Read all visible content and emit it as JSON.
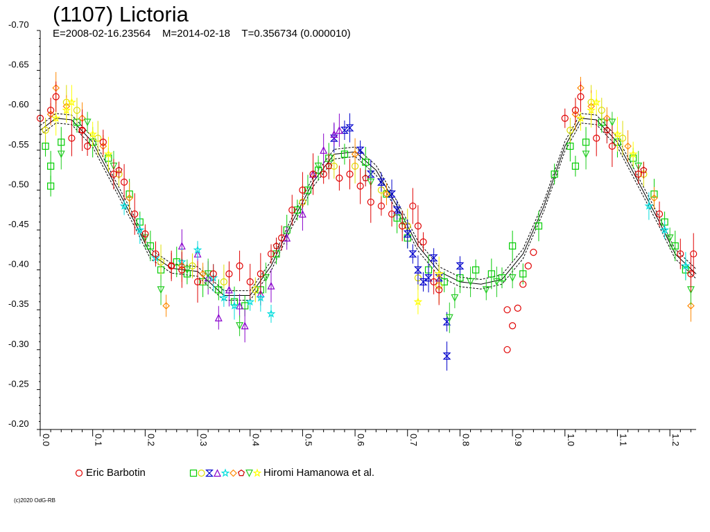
{
  "chart_data": {
    "type": "scatter",
    "title": "(1107) Lictoria",
    "subtitle": "E=2008-02-16.23564    M=2014-02-18    T=0.356734 (0.000010)",
    "xlabel": "",
    "ylabel": "",
    "xlim": [
      0.0,
      1.25
    ],
    "ylim": [
      -0.7,
      -0.2
    ],
    "x_ticks": [
      "0.0",
      "0.1",
      "0.2",
      "0.3",
      "0.4",
      "0.5",
      "0.6",
      "0.7",
      "0.8",
      "0.9",
      "1.0",
      "1.1",
      "1.2"
    ],
    "y_ticks": [
      "-0.70",
      "-0.65",
      "-0.60",
      "-0.55",
      "-0.50",
      "-0.45",
      "-0.40",
      "-0.35",
      "-0.30",
      "-0.25",
      "-0.20"
    ],
    "grid": false,
    "legend_position": "bottom",
    "fit_curve": [
      [
        0.0,
        -0.575
      ],
      [
        0.03,
        -0.59
      ],
      [
        0.06,
        -0.588
      ],
      [
        0.1,
        -0.56
      ],
      [
        0.14,
        -0.51
      ],
      [
        0.18,
        -0.46
      ],
      [
        0.21,
        -0.42
      ],
      [
        0.25,
        -0.402
      ],
      [
        0.3,
        -0.398
      ],
      [
        0.35,
        -0.368
      ],
      [
        0.4,
        -0.368
      ],
      [
        0.44,
        -0.405
      ],
      [
        0.48,
        -0.46
      ],
      [
        0.52,
        -0.51
      ],
      [
        0.56,
        -0.545
      ],
      [
        0.6,
        -0.548
      ],
      [
        0.64,
        -0.525
      ],
      [
        0.68,
        -0.48
      ],
      [
        0.72,
        -0.43
      ],
      [
        0.76,
        -0.398
      ],
      [
        0.8,
        -0.385
      ],
      [
        0.84,
        -0.382
      ],
      [
        0.88,
        -0.388
      ],
      [
        0.92,
        -0.42
      ],
      [
        0.96,
        -0.48
      ],
      [
        1.0,
        -0.555
      ],
      [
        1.03,
        -0.59
      ],
      [
        1.06,
        -0.588
      ],
      [
        1.1,
        -0.56
      ],
      [
        1.14,
        -0.51
      ],
      [
        1.18,
        -0.46
      ],
      [
        1.21,
        -0.42
      ],
      [
        1.25,
        -0.395
      ]
    ],
    "fit_offset": 0.006,
    "series": [
      {
        "name": "Eric Barbotin",
        "marker": "circle",
        "color": "#e00000",
        "points": [
          [
            0.0,
            -0.59
          ],
          [
            0.02,
            -0.6
          ],
          [
            0.03,
            -0.617
          ],
          [
            0.06,
            -0.565
          ],
          [
            0.08,
            -0.575
          ],
          [
            0.09,
            -0.555
          ],
          [
            0.12,
            -0.56
          ],
          [
            0.14,
            -0.52
          ],
          [
            0.16,
            -0.51
          ],
          [
            0.18,
            -0.47
          ],
          [
            0.2,
            -0.445
          ],
          [
            0.22,
            -0.42
          ],
          [
            0.25,
            -0.405
          ],
          [
            0.27,
            -0.4
          ],
          [
            0.3,
            -0.385
          ],
          [
            0.33,
            -0.395
          ],
          [
            0.36,
            -0.395
          ],
          [
            0.38,
            -0.405
          ],
          [
            0.4,
            -0.385
          ],
          [
            0.42,
            -0.395
          ],
          [
            0.44,
            -0.42
          ],
          [
            0.46,
            -0.44
          ],
          [
            0.48,
            -0.475
          ],
          [
            0.5,
            -0.5
          ],
          [
            0.52,
            -0.52
          ],
          [
            0.54,
            -0.52
          ],
          [
            0.57,
            -0.515
          ],
          [
            0.59,
            -0.52
          ],
          [
            0.61,
            -0.505
          ],
          [
            0.63,
            -0.485
          ],
          [
            0.65,
            -0.48
          ],
          [
            0.67,
            -0.47
          ],
          [
            0.69,
            -0.455
          ],
          [
            0.71,
            -0.48
          ],
          [
            0.72,
            -0.455
          ],
          [
            0.73,
            -0.435
          ],
          [
            0.75,
            -0.385
          ],
          [
            0.76,
            -0.375
          ],
          [
            0.89,
            -0.3
          ],
          [
            0.89,
            -0.35
          ],
          [
            0.9,
            -0.33
          ],
          [
            0.91,
            -0.352
          ],
          [
            0.92,
            -0.382
          ],
          [
            0.93,
            -0.405
          ],
          [
            0.94,
            -0.422
          ],
          [
            1.0,
            -0.59
          ],
          [
            1.02,
            -0.6
          ],
          [
            1.03,
            -0.617
          ],
          [
            1.06,
            -0.565
          ],
          [
            1.09,
            -0.555
          ],
          [
            1.14,
            -0.52
          ],
          [
            1.18,
            -0.47
          ],
          [
            1.22,
            -0.42
          ],
          [
            1.24,
            -0.395
          ],
          [
            1.245,
            -0.42
          ]
        ]
      },
      {
        "name": "Hiromi Hamanowa et al.",
        "marker": "square",
        "color": "#00cc00",
        "points": [
          [
            0.01,
            -0.555
          ],
          [
            0.02,
            -0.53
          ],
          [
            0.02,
            -0.505
          ],
          [
            0.04,
            -0.56
          ],
          [
            0.07,
            -0.585
          ],
          [
            0.1,
            -0.56
          ],
          [
            0.13,
            -0.54
          ],
          [
            0.17,
            -0.495
          ],
          [
            0.19,
            -0.46
          ],
          [
            0.21,
            -0.43
          ],
          [
            0.23,
            -0.4
          ],
          [
            0.26,
            -0.41
          ],
          [
            0.28,
            -0.395
          ],
          [
            0.31,
            -0.385
          ],
          [
            0.34,
            -0.375
          ],
          [
            0.37,
            -0.36
          ],
          [
            0.39,
            -0.355
          ],
          [
            0.42,
            -0.375
          ],
          [
            0.45,
            -0.42
          ],
          [
            0.47,
            -0.45
          ],
          [
            0.49,
            -0.475
          ],
          [
            0.51,
            -0.5
          ],
          [
            0.53,
            -0.525
          ],
          [
            0.55,
            -0.54
          ],
          [
            0.58,
            -0.545
          ],
          [
            0.62,
            -0.535
          ],
          [
            0.66,
            -0.495
          ],
          [
            0.68,
            -0.465
          ],
          [
            0.7,
            -0.44
          ],
          [
            0.74,
            -0.4
          ],
          [
            0.77,
            -0.385
          ],
          [
            0.8,
            -0.39
          ],
          [
            0.83,
            -0.4
          ],
          [
            0.86,
            -0.395
          ],
          [
            0.88,
            -0.39
          ],
          [
            0.9,
            -0.43
          ],
          [
            0.92,
            -0.395
          ],
          [
            0.95,
            -0.455
          ],
          [
            0.98,
            -0.52
          ],
          [
            1.01,
            -0.555
          ],
          [
            1.02,
            -0.53
          ],
          [
            1.04,
            -0.56
          ],
          [
            1.07,
            -0.585
          ],
          [
            1.1,
            -0.56
          ],
          [
            1.13,
            -0.54
          ],
          [
            1.17,
            -0.495
          ],
          [
            1.19,
            -0.46
          ],
          [
            1.21,
            -0.43
          ],
          [
            1.23,
            -0.4
          ]
        ]
      },
      {
        "name": "",
        "marker": "circle",
        "color": "#dddd00",
        "points": [
          [
            0.01,
            -0.575
          ],
          [
            0.05,
            -0.61
          ],
          [
            0.07,
            -0.6
          ],
          [
            0.11,
            -0.565
          ],
          [
            0.15,
            -0.52
          ],
          [
            0.23,
            -0.41
          ],
          [
            0.29,
            -0.405
          ],
          [
            0.35,
            -0.385
          ],
          [
            0.41,
            -0.375
          ],
          [
            0.5,
            -0.485
          ],
          [
            0.56,
            -0.53
          ],
          [
            0.6,
            -0.53
          ],
          [
            0.65,
            -0.5
          ],
          [
            0.7,
            -0.455
          ],
          [
            0.72,
            -0.39
          ],
          [
            0.76,
            -0.38
          ],
          [
            1.01,
            -0.575
          ],
          [
            1.05,
            -0.61
          ],
          [
            1.07,
            -0.6
          ],
          [
            1.11,
            -0.565
          ],
          [
            1.15,
            -0.52
          ]
        ]
      },
      {
        "name": "",
        "marker": "hourglass",
        "color": "#0000cc",
        "points": [
          [
            0.56,
            -0.565
          ],
          [
            0.58,
            -0.575
          ],
          [
            0.59,
            -0.578
          ],
          [
            0.61,
            -0.55
          ],
          [
            0.63,
            -0.52
          ],
          [
            0.65,
            -0.51
          ],
          [
            0.67,
            -0.495
          ],
          [
            0.68,
            -0.475
          ],
          [
            0.7,
            -0.445
          ],
          [
            0.71,
            -0.42
          ],
          [
            0.72,
            -0.4
          ],
          [
            0.73,
            -0.385
          ],
          [
            0.74,
            -0.39
          ],
          [
            0.75,
            -0.415
          ],
          [
            0.76,
            -0.39
          ],
          [
            0.775,
            -0.335
          ],
          [
            0.775,
            -0.292
          ],
          [
            0.8,
            -0.405
          ]
        ]
      },
      {
        "name": "",
        "marker": "triangle",
        "color": "#8800cc",
        "points": [
          [
            0.27,
            -0.43
          ],
          [
            0.3,
            -0.42
          ],
          [
            0.32,
            -0.39
          ],
          [
            0.34,
            -0.34
          ],
          [
            0.36,
            -0.375
          ],
          [
            0.38,
            -0.355
          ],
          [
            0.39,
            -0.33
          ],
          [
            0.42,
            -0.37
          ],
          [
            0.44,
            -0.38
          ],
          [
            0.47,
            -0.44
          ],
          [
            0.5,
            -0.47
          ],
          [
            0.52,
            -0.52
          ],
          [
            0.54,
            -0.55
          ],
          [
            0.56,
            -0.57
          ],
          [
            0.57,
            -0.575
          ]
        ]
      },
      {
        "name": "",
        "marker": "star",
        "color": "#00dddd",
        "points": [
          [
            0.16,
            -0.48
          ],
          [
            0.19,
            -0.45
          ],
          [
            0.22,
            -0.415
          ],
          [
            0.27,
            -0.41
          ],
          [
            0.3,
            -0.425
          ],
          [
            0.33,
            -0.39
          ],
          [
            0.35,
            -0.365
          ],
          [
            0.37,
            -0.355
          ],
          [
            0.4,
            -0.36
          ],
          [
            0.42,
            -0.365
          ],
          [
            0.44,
            -0.345
          ],
          [
            1.16,
            -0.48
          ],
          [
            1.19,
            -0.45
          ],
          [
            1.23,
            -0.405
          ]
        ]
      },
      {
        "name": "",
        "marker": "diamond",
        "color": "#ff8800",
        "points": [
          [
            0.02,
            -0.595
          ],
          [
            0.03,
            -0.628
          ],
          [
            0.05,
            -0.605
          ],
          [
            0.08,
            -0.59
          ],
          [
            0.12,
            -0.555
          ],
          [
            0.17,
            -0.49
          ],
          [
            0.24,
            -0.355
          ],
          [
            0.27,
            -0.405
          ],
          [
            0.31,
            -0.395
          ],
          [
            0.6,
            -0.545
          ],
          [
            0.66,
            -0.495
          ],
          [
            1.02,
            -0.595
          ],
          [
            1.03,
            -0.628
          ],
          [
            1.05,
            -0.605
          ],
          [
            1.08,
            -0.59
          ],
          [
            1.12,
            -0.555
          ],
          [
            1.17,
            -0.49
          ],
          [
            1.24,
            -0.355
          ]
        ]
      },
      {
        "name": "",
        "marker": "pentagon",
        "color": "#cc0000",
        "points": [
          [
            0.08,
            -0.575
          ],
          [
            0.15,
            -0.525
          ],
          [
            0.25,
            -0.405
          ],
          [
            0.45,
            -0.43
          ],
          [
            0.55,
            -0.53
          ],
          [
            0.62,
            -0.515
          ],
          [
            1.08,
            -0.575
          ],
          [
            1.15,
            -0.525
          ]
        ]
      },
      {
        "name": "",
        "marker": "triangle-down",
        "color": "#22cc22",
        "points": [
          [
            0.04,
            -0.545
          ],
          [
            0.09,
            -0.585
          ],
          [
            0.14,
            -0.53
          ],
          [
            0.2,
            -0.44
          ],
          [
            0.23,
            -0.375
          ],
          [
            0.28,
            -0.4
          ],
          [
            0.32,
            -0.395
          ],
          [
            0.38,
            -0.33
          ],
          [
            0.43,
            -0.39
          ],
          [
            0.53,
            -0.53
          ],
          [
            0.63,
            -0.51
          ],
          [
            0.69,
            -0.46
          ],
          [
            0.78,
            -0.34
          ],
          [
            0.79,
            -0.365
          ],
          [
            0.82,
            -0.385
          ],
          [
            0.85,
            -0.375
          ],
          [
            0.87,
            -0.385
          ],
          [
            0.9,
            -0.39
          ],
          [
            1.04,
            -0.545
          ],
          [
            1.09,
            -0.585
          ],
          [
            1.14,
            -0.53
          ],
          [
            1.2,
            -0.44
          ],
          [
            1.24,
            -0.375
          ]
        ]
      },
      {
        "name": "",
        "marker": "star",
        "color": "#ffff00",
        "points": [
          [
            0.03,
            -0.59
          ],
          [
            0.05,
            -0.6
          ],
          [
            0.06,
            -0.61
          ],
          [
            0.1,
            -0.57
          ],
          [
            0.13,
            -0.545
          ],
          [
            0.72,
            -0.36
          ],
          [
            0.76,
            -0.395
          ],
          [
            1.03,
            -0.59
          ],
          [
            1.05,
            -0.6
          ],
          [
            1.06,
            -0.61
          ],
          [
            1.1,
            -0.57
          ],
          [
            1.13,
            -0.545
          ]
        ]
      }
    ],
    "legend": [
      {
        "label": "Eric Barbotin",
        "markers": [
          "circle"
        ],
        "colors": [
          "#e00000"
        ]
      },
      {
        "label": "Hiromi Hamanowa et al.",
        "markers": [
          "square",
          "circle",
          "hourglass",
          "triangle",
          "star",
          "diamond",
          "pentagon",
          "triangle-down",
          "star"
        ],
        "colors": [
          "#00cc00",
          "#dddd00",
          "#0000cc",
          "#8800cc",
          "#00dddd",
          "#ff8800",
          "#cc0000",
          "#22cc22",
          "#ffff00"
        ]
      }
    ],
    "copyright": "(c)2020 OdG-RB"
  }
}
